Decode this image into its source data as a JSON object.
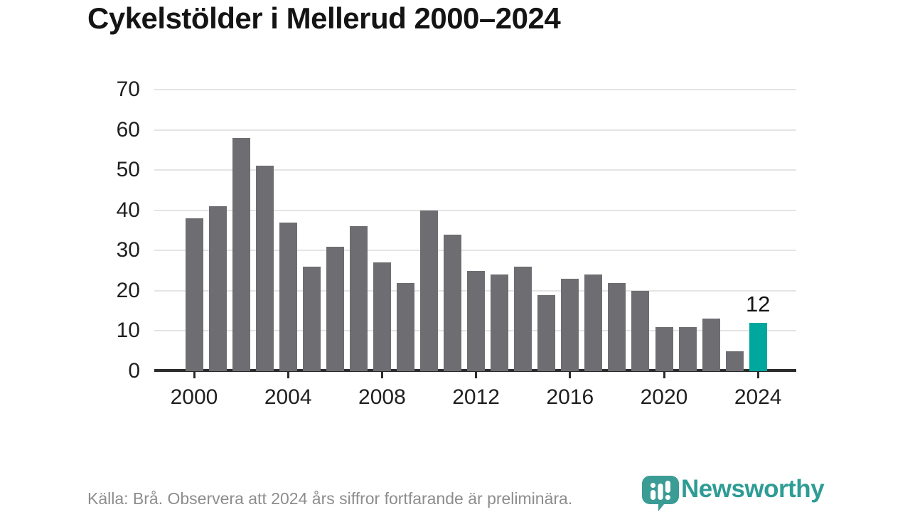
{
  "header": {
    "title": "Cykelstölder i Mellerud 2000–2024"
  },
  "chart_data": {
    "type": "bar",
    "title": "Cykelstölder i Mellerud 2000–2024",
    "x": [
      2000,
      2001,
      2002,
      2003,
      2004,
      2005,
      2006,
      2007,
      2008,
      2009,
      2010,
      2011,
      2012,
      2013,
      2014,
      2015,
      2016,
      2017,
      2018,
      2019,
      2020,
      2021,
      2022,
      2023,
      2024
    ],
    "values": [
      38,
      41,
      58,
      51,
      37,
      26,
      31,
      36,
      27,
      22,
      40,
      34,
      25,
      24,
      26,
      19,
      23,
      24,
      22,
      20,
      11,
      11,
      13,
      5,
      12
    ],
    "xticks": [
      2000,
      2004,
      2008,
      2012,
      2016,
      2020,
      2024
    ],
    "yticks": [
      0,
      10,
      20,
      30,
      40,
      50,
      60,
      70
    ],
    "ylim": [
      0,
      70
    ],
    "xlabel": "",
    "ylabel": "",
    "grid": "horizontal",
    "legend": "none",
    "bar_color": "#6e6d72",
    "highlight_index": 24,
    "highlight_color": "#00a79d",
    "highlight_label": "12"
  },
  "footer": {
    "source": "Källa: Brå. Observera att 2024 års siffror fortfarande är preliminära.",
    "brand": "Newsworthy",
    "brand_color": "#2d9c95",
    "icon": "newsworthy-speech-bubble-barchart-icon"
  }
}
